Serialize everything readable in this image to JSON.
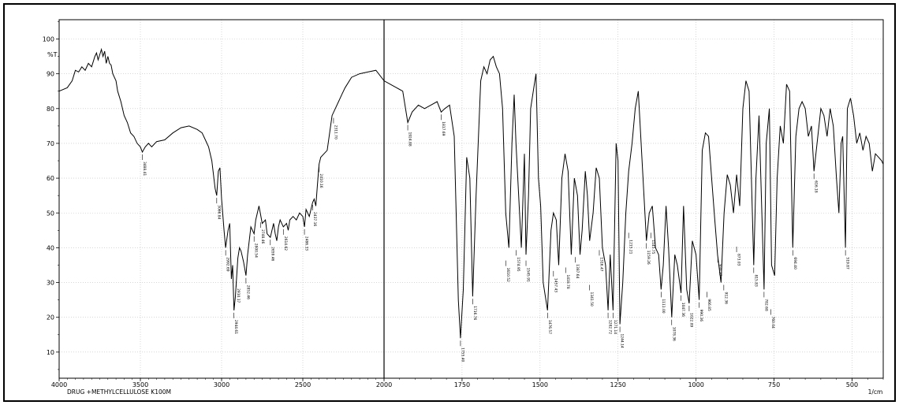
{
  "chart_data": {
    "type": "line",
    "title": "",
    "xlabel": "1/cm",
    "ylabel": "%T",
    "footer": "DRUG +METHYLCELLULOSE K100M",
    "x_reversed": true,
    "xlim": [
      4000,
      400
    ],
    "ylim": [
      0,
      105
    ],
    "x_ticks": [
      4000,
      3500,
      3000,
      2500,
      2000,
      1750,
      1500,
      1250,
      1000,
      750,
      500
    ],
    "y_ticks": [
      10,
      20,
      30,
      40,
      50,
      60,
      70,
      80,
      90,
      100
    ],
    "grid": true,
    "marker_x": 2000,
    "series": [
      {
        "name": "",
        "color": "#000000",
        "points": [
          [
            4000,
            85
          ],
          [
            3950,
            86
          ],
          [
            3920,
            88
          ],
          [
            3900,
            91
          ],
          [
            3880,
            90.5
          ],
          [
            3860,
            92
          ],
          [
            3840,
            91
          ],
          [
            3820,
            93
          ],
          [
            3800,
            92
          ],
          [
            3780,
            95
          ],
          [
            3770,
            96
          ],
          [
            3760,
            94
          ],
          [
            3740,
            97
          ],
          [
            3730,
            95
          ],
          [
            3720,
            96.5
          ],
          [
            3710,
            93
          ],
          [
            3700,
            95
          ],
          [
            3690,
            93
          ],
          [
            3680,
            92.5
          ],
          [
            3670,
            90
          ],
          [
            3650,
            88
          ],
          [
            3640,
            85
          ],
          [
            3620,
            82
          ],
          [
            3600,
            78
          ],
          [
            3580,
            76
          ],
          [
            3560,
            73
          ],
          [
            3540,
            72
          ],
          [
            3520,
            70
          ],
          [
            3500,
            69
          ],
          [
            3488,
            67.5
          ],
          [
            3470,
            69
          ],
          [
            3450,
            70
          ],
          [
            3430,
            69
          ],
          [
            3400,
            70.5
          ],
          [
            3350,
            71
          ],
          [
            3300,
            73
          ],
          [
            3250,
            74.5
          ],
          [
            3200,
            75
          ],
          [
            3150,
            74
          ],
          [
            3120,
            73
          ],
          [
            3100,
            71
          ],
          [
            3080,
            69
          ],
          [
            3060,
            65
          ],
          [
            3040,
            57
          ],
          [
            3030,
            55
          ],
          [
            3020,
            62
          ],
          [
            3010,
            63
          ],
          [
            3000,
            54
          ],
          [
            2985,
            45
          ],
          [
            2975,
            40
          ],
          [
            2960,
            45
          ],
          [
            2950,
            47
          ],
          [
            2940,
            31
          ],
          [
            2932,
            35
          ],
          [
            2924,
            22
          ],
          [
            2915,
            26
          ],
          [
            2900,
            37
          ],
          [
            2890,
            40
          ],
          [
            2880,
            39
          ],
          [
            2865,
            36
          ],
          [
            2850,
            32
          ],
          [
            2840,
            38
          ],
          [
            2820,
            46
          ],
          [
            2800,
            44
          ],
          [
            2790,
            48
          ],
          [
            2770,
            52
          ],
          [
            2750,
            47
          ],
          [
            2730,
            48
          ],
          [
            2720,
            44
          ],
          [
            2700,
            43
          ],
          [
            2690,
            45
          ],
          [
            2680,
            47
          ],
          [
            2670,
            44
          ],
          [
            2660,
            42
          ],
          [
            2650,
            46
          ],
          [
            2640,
            48
          ],
          [
            2620,
            46
          ],
          [
            2600,
            47
          ],
          [
            2590,
            45
          ],
          [
            2580,
            48
          ],
          [
            2560,
            49
          ],
          [
            2540,
            48
          ],
          [
            2520,
            50
          ],
          [
            2500,
            49
          ],
          [
            2490,
            46
          ],
          [
            2480,
            51
          ],
          [
            2460,
            49
          ],
          [
            2440,
            53
          ],
          [
            2430,
            54
          ],
          [
            2420,
            52
          ],
          [
            2410,
            58
          ],
          [
            2400,
            64
          ],
          [
            2390,
            66
          ],
          [
            2370,
            67
          ],
          [
            2350,
            68
          ],
          [
            2335,
            73
          ],
          [
            2320,
            78
          ],
          [
            2300,
            80
          ],
          [
            2280,
            82
          ],
          [
            2260,
            84
          ],
          [
            2240,
            86
          ],
          [
            2200,
            89
          ],
          [
            2150,
            90
          ],
          [
            2100,
            90.5
          ],
          [
            2050,
            91
          ],
          [
            2000,
            88
          ],
          [
            1980,
            87
          ],
          [
            1960,
            86
          ],
          [
            1940,
            85
          ],
          [
            1924,
            76
          ],
          [
            1910,
            79
          ],
          [
            1890,
            81
          ],
          [
            1870,
            80
          ],
          [
            1850,
            81
          ],
          [
            1830,
            82
          ],
          [
            1817,
            79
          ],
          [
            1805,
            80
          ],
          [
            1790,
            81
          ],
          [
            1775,
            72
          ],
          [
            1762,
            25
          ],
          [
            1755,
            14
          ],
          [
            1746,
            28
          ],
          [
            1735,
            66
          ],
          [
            1725,
            60
          ],
          [
            1716,
            26
          ],
          [
            1705,
            55
          ],
          [
            1690,
            88
          ],
          [
            1680,
            92
          ],
          [
            1670,
            90
          ],
          [
            1660,
            94
          ],
          [
            1650,
            95
          ],
          [
            1640,
            92
          ],
          [
            1630,
            90
          ],
          [
            1620,
            80
          ],
          [
            1610,
            50
          ],
          [
            1600,
            40
          ],
          [
            1590,
            70
          ],
          [
            1583,
            84
          ],
          [
            1577,
            70
          ],
          [
            1560,
            40
          ],
          [
            1550,
            67
          ],
          [
            1545,
            38
          ],
          [
            1537,
            55
          ],
          [
            1530,
            80
          ],
          [
            1520,
            86
          ],
          [
            1513,
            90
          ],
          [
            1505,
            60
          ],
          [
            1498,
            52
          ],
          [
            1490,
            30
          ],
          [
            1476,
            22
          ],
          [
            1465,
            45
          ],
          [
            1457,
            50
          ],
          [
            1448,
            48
          ],
          [
            1440,
            35
          ],
          [
            1430,
            60
          ],
          [
            1420,
            67
          ],
          [
            1410,
            62
          ],
          [
            1400,
            38
          ],
          [
            1390,
            60
          ],
          [
            1380,
            55
          ],
          [
            1372,
            38
          ],
          [
            1365,
            45
          ],
          [
            1355,
            62
          ],
          [
            1348,
            55
          ],
          [
            1341,
            42
          ],
          [
            1330,
            50
          ],
          [
            1320,
            63
          ],
          [
            1310,
            60
          ],
          [
            1300,
            40
          ],
          [
            1290,
            35
          ],
          [
            1282,
            22
          ],
          [
            1275,
            38
          ],
          [
            1266,
            22
          ],
          [
            1256,
            70
          ],
          [
            1250,
            65
          ],
          [
            1244,
            18
          ],
          [
            1235,
            30
          ],
          [
            1225,
            50
          ],
          [
            1216,
            62
          ],
          [
            1205,
            70
          ],
          [
            1195,
            80
          ],
          [
            1185,
            85
          ],
          [
            1170,
            60
          ],
          [
            1159,
            42
          ],
          [
            1150,
            50
          ],
          [
            1140,
            52
          ],
          [
            1130,
            40
          ],
          [
            1120,
            38
          ],
          [
            1112,
            28
          ],
          [
            1105,
            35
          ],
          [
            1096,
            52
          ],
          [
            1088,
            40
          ],
          [
            1078,
            20
          ],
          [
            1068,
            38
          ],
          [
            1060,
            35
          ],
          [
            1048,
            27
          ],
          [
            1040,
            52
          ],
          [
            1030,
            28
          ],
          [
            1022,
            24
          ],
          [
            1012,
            42
          ],
          [
            1000,
            38
          ],
          [
            990,
            25
          ],
          [
            980,
            68
          ],
          [
            970,
            73
          ],
          [
            960,
            72
          ],
          [
            950,
            60
          ],
          [
            940,
            48
          ],
          [
            931,
            38
          ],
          [
            920,
            30
          ],
          [
            910,
            50
          ],
          [
            900,
            61
          ],
          [
            890,
            58
          ],
          [
            880,
            50
          ],
          [
            870,
            61
          ],
          [
            860,
            52
          ],
          [
            850,
            80
          ],
          [
            840,
            88
          ],
          [
            830,
            85
          ],
          [
            815,
            35
          ],
          [
            808,
            60
          ],
          [
            798,
            78
          ],
          [
            782,
            28
          ],
          [
            775,
            70
          ],
          [
            765,
            80
          ],
          [
            758,
            35
          ],
          [
            748,
            32
          ],
          [
            740,
            60
          ],
          [
            730,
            75
          ],
          [
            720,
            70
          ],
          [
            710,
            87
          ],
          [
            700,
            85
          ],
          [
            690,
            40
          ],
          [
            680,
            72
          ],
          [
            670,
            80
          ],
          [
            660,
            82
          ],
          [
            650,
            80
          ],
          [
            640,
            72
          ],
          [
            630,
            75
          ],
          [
            622,
            62
          ],
          [
            612,
            70
          ],
          [
            600,
            80
          ],
          [
            590,
            78
          ],
          [
            580,
            72
          ],
          [
            570,
            80
          ],
          [
            560,
            75
          ],
          [
            550,
            60
          ],
          [
            542,
            50
          ],
          [
            535,
            70
          ],
          [
            530,
            72
          ],
          [
            521,
            40
          ],
          [
            515,
            80
          ],
          [
            505,
            83
          ],
          [
            495,
            78
          ],
          [
            485,
            70
          ],
          [
            475,
            73
          ],
          [
            465,
            68
          ],
          [
            455,
            72
          ],
          [
            445,
            70
          ],
          [
            435,
            62
          ],
          [
            425,
            67
          ],
          [
            415,
            66
          ],
          [
            405,
            65
          ],
          [
            400,
            64
          ]
        ]
      }
    ],
    "peak_labels": [
      {
        "x": 3488.41,
        "y": 67.5,
        "text": "3488.41"
      },
      {
        "x": 3030,
        "y": 55,
        "text": "3066.84"
      },
      {
        "x": 2975,
        "y": 40,
        "text": "2992.69"
      },
      {
        "x": 2924,
        "y": 22,
        "text": "2944.61"
      },
      {
        "x": 2910,
        "y": 31,
        "text": "2910.17"
      },
      {
        "x": 2850,
        "y": 32,
        "text": "2852.46"
      },
      {
        "x": 2800,
        "y": 44,
        "text": "2800.54"
      },
      {
        "x": 2760,
        "y": 48,
        "text": "2748.46"
      },
      {
        "x": 2700,
        "y": 43,
        "text": "2659.46"
      },
      {
        "x": 2620,
        "y": 46,
        "text": "2614.62"
      },
      {
        "x": 2490,
        "y": 46,
        "text": "2486.33"
      },
      {
        "x": 2440,
        "y": 53,
        "text": "2437.16"
      },
      {
        "x": 2400,
        "y": 64,
        "text": "2410.16"
      },
      {
        "x": 2311,
        "y": 78,
        "text": "2311.70"
      },
      {
        "x": 1924,
        "y": 76,
        "text": "1924.88"
      },
      {
        "x": 1817,
        "y": 79,
        "text": "1817.69"
      },
      {
        "x": 1755,
        "y": 14,
        "text": "1755.40"
      },
      {
        "x": 1716,
        "y": 26,
        "text": "1716.76"
      },
      {
        "x": 1610,
        "y": 37,
        "text": "1610.52"
      },
      {
        "x": 1577,
        "y": 40,
        "text": "1574.95"
      },
      {
        "x": 1545,
        "y": 37,
        "text": "1545.91"
      },
      {
        "x": 1476,
        "y": 22,
        "text": "1476.57"
      },
      {
        "x": 1457,
        "y": 34,
        "text": "1457.43"
      },
      {
        "x": 1418,
        "y": 35,
        "text": "1418.78"
      },
      {
        "x": 1387,
        "y": 38,
        "text": "1387.64"
      },
      {
        "x": 1341,
        "y": 30,
        "text": "1341.50"
      },
      {
        "x": 1310,
        "y": 40,
        "text": "1316.47"
      },
      {
        "x": 1282,
        "y": 22,
        "text": "1282.72"
      },
      {
        "x": 1266,
        "y": 22,
        "text": "1271.14"
      },
      {
        "x": 1244,
        "y": 18,
        "text": "1244.14"
      },
      {
        "x": 1216,
        "y": 45,
        "text": "1215.21"
      },
      {
        "x": 1159,
        "y": 42,
        "text": "1159.26"
      },
      {
        "x": 1145,
        "y": 45,
        "text": "1145.75"
      },
      {
        "x": 1112,
        "y": 28,
        "text": "1111.00"
      },
      {
        "x": 1078,
        "y": 20,
        "text": "1078.36"
      },
      {
        "x": 1048,
        "y": 27,
        "text": "1047.36"
      },
      {
        "x": 1022,
        "y": 24,
        "text": "1022.09"
      },
      {
        "x": 990,
        "y": 25,
        "text": "990.36"
      },
      {
        "x": 965,
        "y": 28,
        "text": "966.85"
      },
      {
        "x": 930,
        "y": 38,
        "text": "930.37"
      },
      {
        "x": 911,
        "y": 30,
        "text": "912.36"
      },
      {
        "x": 870,
        "y": 41,
        "text": "873.03"
      },
      {
        "x": 815,
        "y": 35,
        "text": "815.83"
      },
      {
        "x": 782,
        "y": 28,
        "text": "782.68"
      },
      {
        "x": 760,
        "y": 23,
        "text": "760.04"
      },
      {
        "x": 690,
        "y": 40,
        "text": "694.40"
      },
      {
        "x": 622,
        "y": 62,
        "text": "616.18"
      },
      {
        "x": 521,
        "y": 40,
        "text": "519.87"
      }
    ]
  }
}
